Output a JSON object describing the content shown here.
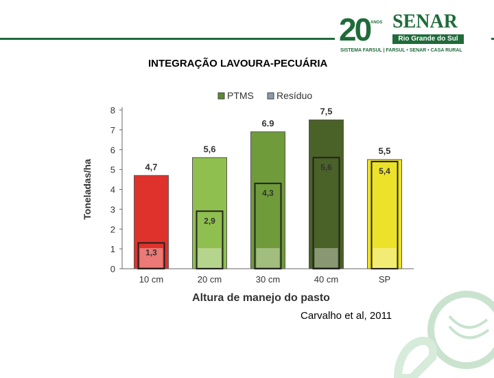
{
  "header": {
    "logo_twenty": "20",
    "logo_anos": "ANOS",
    "logo_senar": "SENAR",
    "logo_region": "Rio Grande do Sul",
    "logo_subtitle": "SISTEMA FARSUL | FARSUL • SENAR • CASA RURAL",
    "accent_color": "#1f6b3a"
  },
  "slide": {
    "title": "INTEGRAÇÃO LAVOURA-PECUÁRIA",
    "citation": "Carvalho et al, 2011"
  },
  "chart_data": {
    "type": "bar",
    "categories": [
      "10 cm",
      "20 cm",
      "30 cm",
      "40 cm",
      "SP"
    ],
    "series": [
      {
        "name": "PTMS",
        "values": [
          4.7,
          5.6,
          6.9,
          7.5,
          5.5
        ],
        "labels": [
          "4,7",
          "5,6",
          "6.9",
          "7,5",
          "5,5"
        ]
      },
      {
        "name": "Resíduo",
        "values": [
          1.3,
          2.9,
          4.3,
          5.6,
          5.4
        ],
        "labels": [
          "1,3",
          "2,9",
          "4,3",
          "5,6",
          "5,4"
        ]
      }
    ],
    "bar_colors": [
      "#e0322c",
      "#8fbf4f",
      "#6f9b3a",
      "#4a6127",
      "#ede22a"
    ],
    "legend_colors": [
      "#5a8a33",
      "#8a9aa8"
    ],
    "xlabel": "Altura de manejo do pasto",
    "ylabel": "Toneladas/ha",
    "ylim": [
      0,
      8
    ],
    "yticks": [
      "0",
      "1",
      "2",
      "3",
      "4",
      "5",
      "6",
      "7",
      "8"
    ],
    "legend_position": "top",
    "grid": false
  }
}
